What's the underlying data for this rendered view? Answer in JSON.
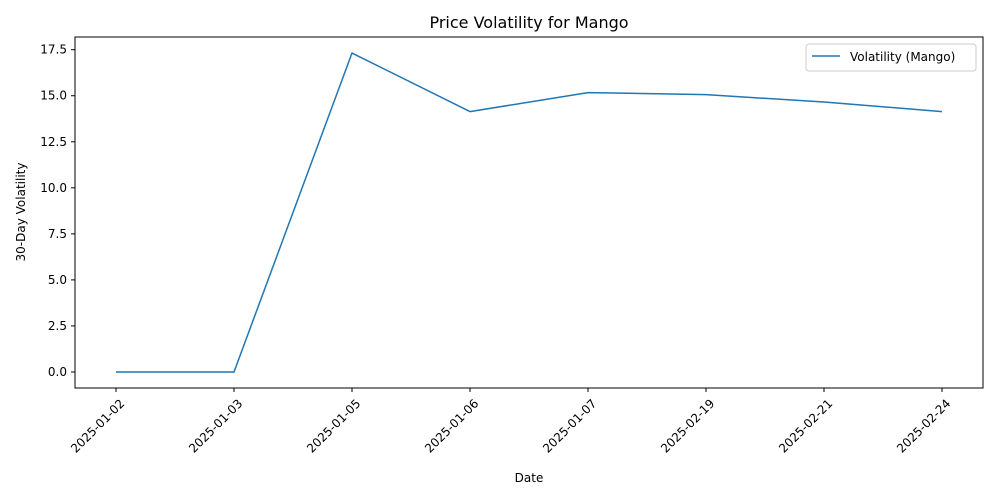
{
  "chart_data": {
    "type": "line",
    "title": "Price Volatility for Mango",
    "xlabel": "Date",
    "ylabel": "30-Day Volatility",
    "categories": [
      "2025-01-02",
      "2025-01-03",
      "2025-01-05",
      "2025-01-06",
      "2025-01-07",
      "2025-02-19",
      "2025-02-21",
      "2025-02-24"
    ],
    "series": [
      {
        "name": "Volatility (Mango)",
        "color": "#1f77b4",
        "values": [
          0.0,
          0.0,
          17.32,
          14.14,
          15.17,
          15.06,
          14.66,
          14.14
        ]
      }
    ],
    "ylim": [
      -0.87,
      18.19
    ],
    "yticks": [
      0.0,
      2.5,
      5.0,
      7.5,
      10.0,
      12.5,
      15.0,
      17.5
    ],
    "ytick_labels": [
      "0.0",
      "2.5",
      "5.0",
      "7.5",
      "10.0",
      "12.5",
      "15.0",
      "17.5"
    ],
    "grid": false,
    "legend_position": "top-right"
  }
}
